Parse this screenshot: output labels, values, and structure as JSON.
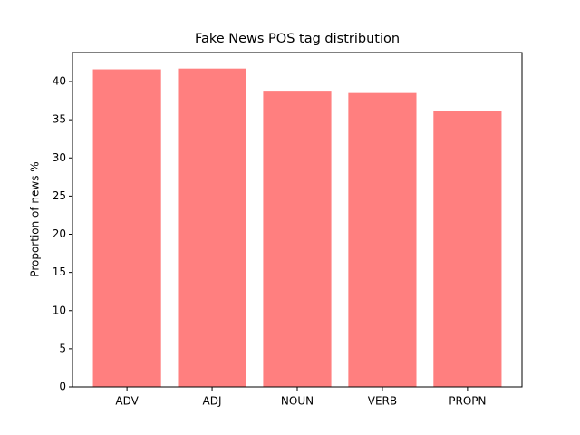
{
  "chart_data": {
    "type": "bar",
    "title": "Fake News POS tag distribution",
    "y_label": "Proportion of news %",
    "categories": [
      "ADV",
      "ADJ",
      "NOUN",
      "VERB",
      "PROPN"
    ],
    "values": [
      41.6,
      41.7,
      38.8,
      38.5,
      36.2
    ],
    "color": "#ff7f7f",
    "ylim": [
      0,
      43.8
    ],
    "yticks": [
      0,
      5,
      10,
      15,
      20,
      25,
      30,
      35,
      40
    ],
    "grid": false
  }
}
